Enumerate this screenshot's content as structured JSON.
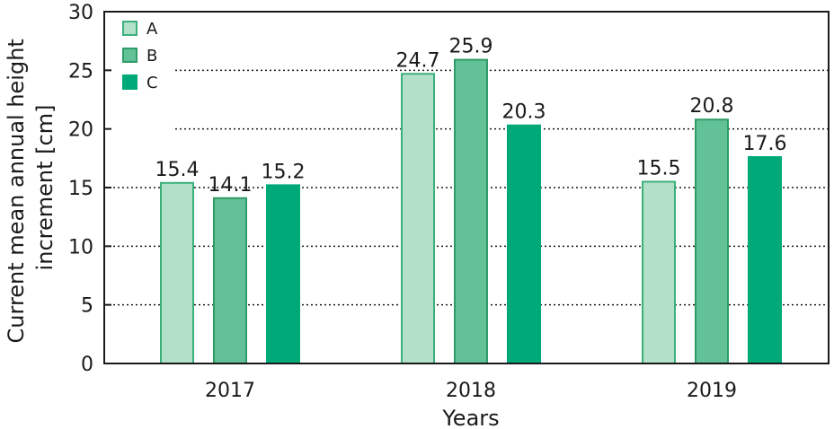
{
  "chart_data": {
    "type": "bar",
    "title": "",
    "xlabel": "Years",
    "ylabel_lines": [
      "Current mean annual height",
      "increment [cm]"
    ],
    "categories": [
      "2017",
      "2018",
      "2019"
    ],
    "ylim": [
      0,
      30
    ],
    "yticks": [
      "0",
      "5",
      "10",
      "15",
      "20",
      "25",
      "30"
    ],
    "grid": "horizontal dotted",
    "legend_position": "top-left",
    "series": [
      {
        "name": "A",
        "values": [
          15.4,
          24.7,
          15.5
        ],
        "value_labels": [
          "15.4",
          "24.7",
          "15.5"
        ],
        "color": "#b2e0c9",
        "stroke": "#3cb07a"
      },
      {
        "name": "B",
        "values": [
          14.1,
          25.9,
          20.8
        ],
        "value_labels": [
          "14.1",
          "25.9",
          "20.8"
        ],
        "color": "#63c197",
        "stroke": "#2e9c68"
      },
      {
        "name": "C",
        "values": [
          15.2,
          20.3,
          17.6
        ],
        "value_labels": [
          "15.2",
          "20.3",
          "17.6"
        ],
        "color": "#00a978",
        "stroke": "#00a978"
      }
    ]
  }
}
